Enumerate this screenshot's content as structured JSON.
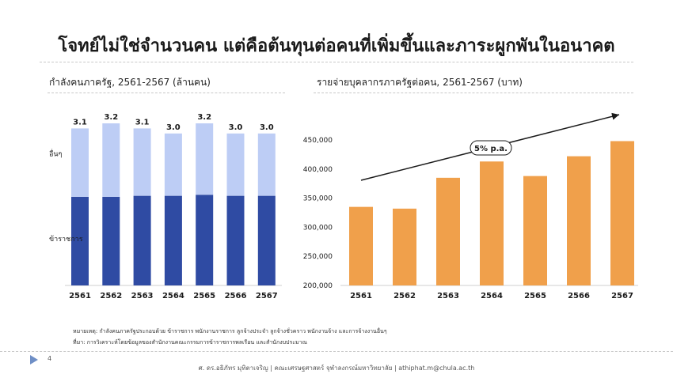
{
  "title": "โจทย์ไม่ใช่จำนวนคน แต่คือต้นทุนต่อคนที่เพิ่มขึ้นและภาระผูกพันในอนาคต",
  "chart_data": [
    {
      "type": "bar",
      "stacked": true,
      "title": "กำลังคนภาครัฐ, 2561-2567 (ล้านคน)",
      "categories": [
        "2561",
        "2562",
        "2563",
        "2564",
        "2565",
        "2566",
        "2567"
      ],
      "totals": [
        "3.1",
        "3.2",
        "3.1",
        "3.0",
        "3.2",
        "3.0",
        "3.0"
      ],
      "series": [
        {
          "name": "ข้าราชการ",
          "color": "#2f4ba3",
          "values": [
            1.75,
            1.75,
            1.77,
            1.77,
            1.79,
            1.77,
            1.77
          ]
        },
        {
          "name": "อื่นๆ",
          "color": "#bdcdf5",
          "values": [
            1.35,
            1.45,
            1.33,
            1.23,
            1.41,
            1.23,
            1.23
          ]
        }
      ],
      "ylim": [
        0,
        3.3
      ],
      "grid": false
    },
    {
      "type": "bar",
      "title": "รายจ่ายบุคลากรภาครัฐต่อคน, 2561-2567 (บาท)",
      "categories": [
        "2561",
        "2562",
        "2563",
        "2564",
        "2565",
        "2566",
        "2567"
      ],
      "values": [
        335000,
        332000,
        385000,
        413000,
        388000,
        422000,
        448000
      ],
      "color": "#f0a04b",
      "ylim": [
        200000,
        450000
      ],
      "yticks": [
        "200,000",
        "250,000",
        "300,000",
        "350,000",
        "400,000",
        "450,000"
      ],
      "annotation": "5% p.a.",
      "trend_arrow": true,
      "grid": false
    }
  ],
  "footnote1": "หมายเหตุ: กำลังคนภาครัฐประกอบด้วย ข้าราชการ พนักงานราชการ ลูกจ้างประจำ ลูกจ้างชั่วคราว พนักงานจ้าง และการจ้างงานอื่นๆ",
  "footnote2": "ที่มา: การวิเคราะห์โดยข้อมูลของสำนักงานคณะกรรมการข้าราชการพลเรือน และสำนักงบประมาณ",
  "page_number": "4",
  "footer": "ศ. ดร.อธิภัทร มุทิตาเจริญ | คณะเศรษฐศาสตร์ จุฬาลงกรณ์มหาวิทยาลัย | athiphat.m@chula.ac.th"
}
